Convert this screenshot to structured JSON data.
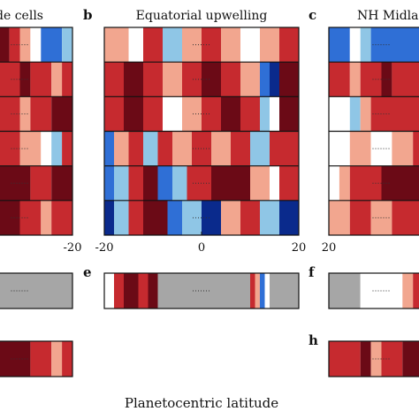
{
  "chart_data": {
    "type": "heatmap",
    "xlabel": "Planetocentric latitude",
    "colors": {
      "dark_red": "#6b0a16",
      "red": "#c62a2f",
      "light_red": "#f2a68f",
      "white": "#ffffff",
      "light_blue": "#8fc6e6",
      "blue": "#2f6fd6",
      "dark_blue": "#0a2a8c",
      "no_data": "#a6a6a6"
    },
    "panels": [
      {
        "letter": "",
        "title": "de cells",
        "xlim": [
          -30,
          -20
        ],
        "ticks": [
          -20
        ],
        "rows": [
          [
            [
              -30,
              -26,
              "dark_red"
            ],
            [
              -26,
              -25,
              "red"
            ],
            [
              -25,
              -24,
              "light_red"
            ],
            [
              -24,
              -23,
              "white"
            ],
            [
              -23,
              -21,
              "blue"
            ],
            [
              -21,
              -20,
              "light_blue"
            ]
          ],
          [
            [
              -30,
              -27,
              "dark_red"
            ],
            [
              -27,
              -25,
              "red"
            ],
            [
              -25,
              -24,
              "dark_red"
            ],
            [
              -24,
              -22,
              "red"
            ],
            [
              -22,
              -21,
              "light_red"
            ],
            [
              -21,
              -20,
              "red"
            ]
          ],
          [
            [
              -30,
              -28,
              "red"
            ],
            [
              -28,
              -27,
              "white"
            ],
            [
              -27,
              -25,
              "red"
            ],
            [
              -25,
              -24,
              "light_red"
            ],
            [
              -24,
              -22,
              "red"
            ],
            [
              -22,
              -20,
              "dark_red"
            ]
          ],
          [
            [
              -30,
              -27,
              "dark_red"
            ],
            [
              -27,
              -25,
              "red"
            ],
            [
              -25,
              -23,
              "light_red"
            ],
            [
              -23,
              -22,
              "white"
            ],
            [
              -22,
              -21,
              "light_blue"
            ],
            [
              -21,
              -20,
              "red"
            ]
          ],
          [
            [
              -30,
              -24,
              "dark_red"
            ],
            [
              -24,
              -22,
              "red"
            ],
            [
              -22,
              -20,
              "dark_red"
            ]
          ],
          [
            [
              -30,
              -27,
              "red"
            ],
            [
              -27,
              -25,
              "dark_red"
            ],
            [
              -25,
              -23,
              "red"
            ],
            [
              -23,
              -22,
              "light_red"
            ],
            [
              -22,
              -20,
              "red"
            ]
          ]
        ]
      },
      {
        "letter": "b",
        "title": "Equatorial upwelling",
        "xlim": [
          -20,
          20
        ],
        "ticks": [
          -20,
          0,
          20
        ],
        "rows": [
          [
            [
              -20,
              -15,
              "light_red"
            ],
            [
              -15,
              -12,
              "white"
            ],
            [
              -12,
              -8,
              "red"
            ],
            [
              -8,
              -4,
              "light_blue"
            ],
            [
              -4,
              0,
              "light_red"
            ],
            [
              0,
              4,
              "red"
            ],
            [
              4,
              8,
              "light_red"
            ],
            [
              8,
              12,
              "white"
            ],
            [
              12,
              16,
              "light_red"
            ],
            [
              16,
              20,
              "red"
            ]
          ],
          [
            [
              -20,
              -16,
              "red"
            ],
            [
              -16,
              -12,
              "dark_red"
            ],
            [
              -12,
              -8,
              "red"
            ],
            [
              -8,
              -4,
              "light_red"
            ],
            [
              -4,
              0,
              "red"
            ],
            [
              0,
              4,
              "dark_red"
            ],
            [
              4,
              8,
              "red"
            ],
            [
              8,
              12,
              "light_red"
            ],
            [
              12,
              14,
              "blue"
            ],
            [
              14,
              16,
              "dark_blue"
            ],
            [
              16,
              20,
              "dark_red"
            ]
          ],
          [
            [
              -20,
              -16,
              "red"
            ],
            [
              -16,
              -12,
              "dark_red"
            ],
            [
              -12,
              -8,
              "red"
            ],
            [
              -8,
              -4,
              "white"
            ],
            [
              -4,
              0,
              "light_red"
            ],
            [
              0,
              4,
              "red"
            ],
            [
              4,
              8,
              "dark_red"
            ],
            [
              8,
              12,
              "red"
            ],
            [
              12,
              14,
              "light_blue"
            ],
            [
              14,
              16,
              "white"
            ],
            [
              16,
              20,
              "dark_red"
            ]
          ],
          [
            [
              -20,
              -18,
              "blue"
            ],
            [
              -18,
              -15,
              "light_red"
            ],
            [
              -15,
              -12,
              "red"
            ],
            [
              -12,
              -9,
              "light_blue"
            ],
            [
              -9,
              -6,
              "red"
            ],
            [
              -6,
              -2,
              "light_red"
            ],
            [
              -2,
              2,
              "red"
            ],
            [
              2,
              6,
              "light_red"
            ],
            [
              6,
              10,
              "red"
            ],
            [
              10,
              14,
              "light_blue"
            ],
            [
              14,
              20,
              "red"
            ]
          ],
          [
            [
              -20,
              -18,
              "blue"
            ],
            [
              -18,
              -15,
              "light_blue"
            ],
            [
              -15,
              -12,
              "red"
            ],
            [
              -12,
              -9,
              "dark_red"
            ],
            [
              -9,
              -6,
              "blue"
            ],
            [
              -6,
              -3,
              "light_blue"
            ],
            [
              -3,
              2,
              "red"
            ],
            [
              2,
              10,
              "dark_red"
            ],
            [
              10,
              14,
              "light_red"
            ],
            [
              14,
              16,
              "white"
            ],
            [
              16,
              20,
              "red"
            ]
          ],
          [
            [
              -20,
              -18,
              "dark_blue"
            ],
            [
              -18,
              -15,
              "light_blue"
            ],
            [
              -15,
              -12,
              "red"
            ],
            [
              -12,
              -7,
              "dark_red"
            ],
            [
              -7,
              -4,
              "blue"
            ],
            [
              -4,
              0,
              "light_blue"
            ],
            [
              0,
              4,
              "dark_blue"
            ],
            [
              4,
              8,
              "light_red"
            ],
            [
              8,
              12,
              "red"
            ],
            [
              12,
              16,
              "light_blue"
            ],
            [
              16,
              20,
              "dark_blue"
            ]
          ]
        ]
      },
      {
        "letter": "c",
        "title": "NH  Midla",
        "xlim": [
          20,
          30
        ],
        "ticks": [
          20
        ],
        "rows": [
          [
            [
              20,
              22,
              "blue"
            ],
            [
              22,
              23,
              "white"
            ],
            [
              23,
              24,
              "light_blue"
            ],
            [
              24,
              30,
              "blue"
            ]
          ],
          [
            [
              20,
              22,
              "red"
            ],
            [
              22,
              23,
              "light_red"
            ],
            [
              23,
              25,
              "red"
            ],
            [
              25,
              26,
              "dark_red"
            ],
            [
              26,
              30,
              "red"
            ]
          ],
          [
            [
              20,
              22,
              "white"
            ],
            [
              22,
              23,
              "light_blue"
            ],
            [
              23,
              24,
              "light_red"
            ],
            [
              24,
              30,
              "red"
            ]
          ],
          [
            [
              20,
              22,
              "white"
            ],
            [
              22,
              24,
              "light_red"
            ],
            [
              24,
              26,
              "white"
            ],
            [
              26,
              28,
              "light_red"
            ],
            [
              28,
              30,
              "red"
            ]
          ],
          [
            [
              20,
              21,
              "white"
            ],
            [
              21,
              22,
              "light_red"
            ],
            [
              22,
              25,
              "red"
            ],
            [
              25,
              30,
              "dark_red"
            ]
          ],
          [
            [
              20,
              22,
              "light_red"
            ],
            [
              22,
              24,
              "red"
            ],
            [
              24,
              26,
              "light_red"
            ],
            [
              26,
              30,
              "red"
            ]
          ]
        ]
      },
      {
        "letter": "",
        "title": "",
        "xlim": [
          -30,
          -20
        ],
        "ticks": [],
        "rows": [
          [
            [
              -30,
              -29,
              "light_red"
            ],
            [
              -29,
              -28.5,
              "white"
            ],
            [
              -28.5,
              -20,
              "no_data"
            ]
          ]
        ]
      },
      {
        "letter": "e",
        "title": "",
        "xlim": [
          -20,
          20
        ],
        "ticks": [],
        "rows": [
          [
            [
              -20,
              -18,
              "white"
            ],
            [
              -18,
              -16,
              "red"
            ],
            [
              -16,
              -13,
              "dark_red"
            ],
            [
              -13,
              -11,
              "red"
            ],
            [
              -11,
              -9,
              "dark_red"
            ],
            [
              -9,
              10,
              "no_data"
            ],
            [
              10,
              11,
              "red"
            ],
            [
              11,
              12,
              "light_red"
            ],
            [
              12,
              13,
              "blue"
            ],
            [
              13,
              14,
              "white"
            ],
            [
              14,
              20,
              "no_data"
            ]
          ]
        ]
      },
      {
        "letter": "f",
        "title": "",
        "xlim": [
          20,
          30
        ],
        "ticks": [],
        "rows": [
          [
            [
              20,
              23,
              "no_data"
            ],
            [
              23,
              24,
              "white"
            ],
            [
              24,
              27,
              "white"
            ],
            [
              27,
              28,
              "light_red"
            ],
            [
              28,
              29,
              "red"
            ],
            [
              29,
              30,
              "dark_red"
            ]
          ]
        ]
      },
      {
        "letter": "",
        "title": "",
        "xlim": [
          -30,
          -20
        ],
        "ticks": [],
        "rows": [
          [
            [
              -30,
              -24,
              "dark_red"
            ],
            [
              -24,
              -22,
              "red"
            ],
            [
              -22,
              -21,
              "light_red"
            ],
            [
              -21,
              -20,
              "red"
            ]
          ]
        ]
      },
      {
        "letter": "h",
        "title": "",
        "xlim": [
          20,
          30
        ],
        "ticks": [],
        "rows": [
          [
            [
              20,
              23,
              "red"
            ],
            [
              23,
              24,
              "dark_red"
            ],
            [
              24,
              25,
              "light_red"
            ],
            [
              25,
              27,
              "red"
            ],
            [
              27,
              30,
              "dark_red"
            ]
          ]
        ]
      }
    ]
  }
}
